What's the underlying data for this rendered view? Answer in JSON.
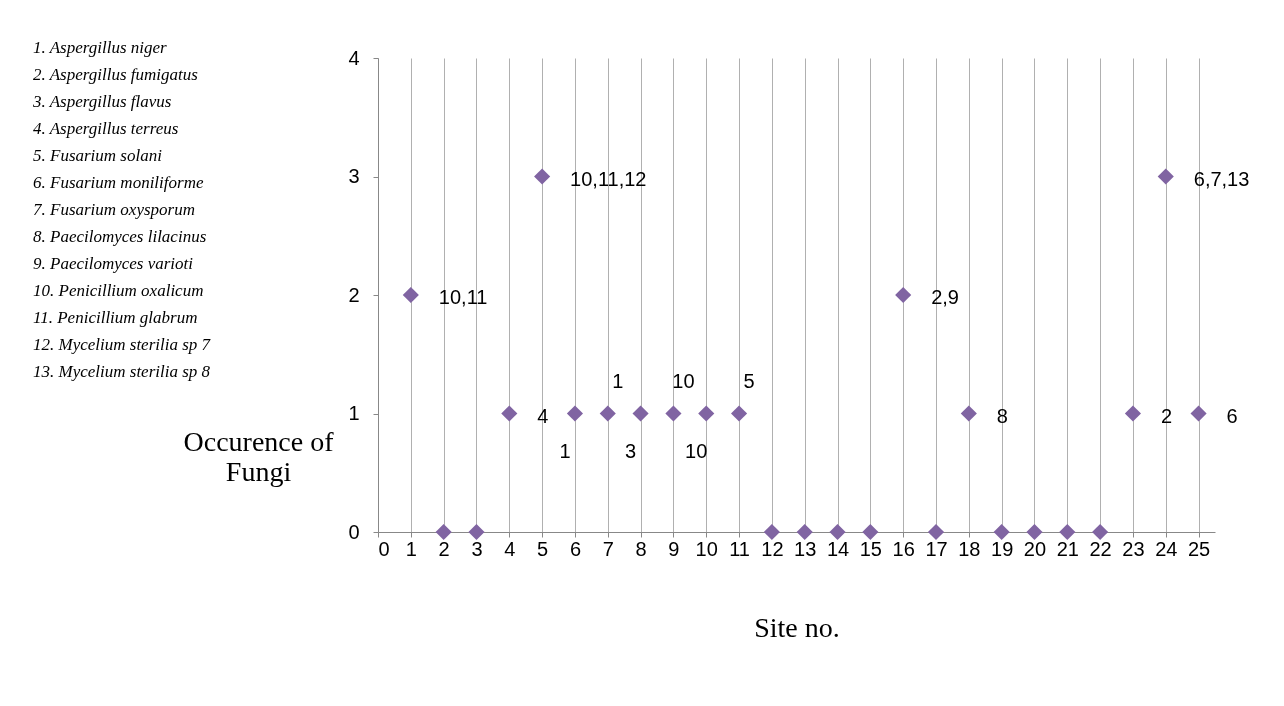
{
  "chart_data": {
    "type": "scatter",
    "xlabel": "Site no.",
    "ylabel": "Occurence of Fungi",
    "x": [
      1,
      2,
      3,
      4,
      5,
      6,
      7,
      8,
      9,
      10,
      11,
      12,
      13,
      14,
      15,
      16,
      17,
      18,
      19,
      20,
      21,
      22,
      23,
      24,
      25
    ],
    "series": [
      {
        "color": "#8064a2",
        "values": [
          2,
          0,
          0,
          1,
          3,
          1,
          1,
          1,
          1,
          1,
          1,
          0,
          0,
          0,
          0,
          2,
          0,
          1,
          0,
          0,
          0,
          0,
          1,
          3,
          1
        ]
      }
    ],
    "xlim": [
      0,
      25.5
    ],
    "xticks": [
      0,
      1,
      2,
      3,
      4,
      5,
      6,
      7,
      8,
      9,
      10,
      11,
      12,
      13,
      14,
      15,
      16,
      17,
      18,
      19,
      20,
      21,
      22,
      23,
      24,
      25
    ],
    "ylim": [
      0,
      4
    ],
    "yticks": [
      0,
      1,
      2,
      3,
      4
    ],
    "grid": "x",
    "marker": "diamond",
    "legend": false,
    "annotations": [
      "1. Aspergillus niger",
      "2. Aspergillus fumigatus",
      "3. Aspergillus flavus",
      "4. Aspergillus terreus",
      "5. Fusarium  solani",
      "6. Fusarium moniliforme",
      "7. Fusarium oxysporum",
      "8. Paecilomyces  lilacinus",
      "9. Paecilomyces varioti",
      "10. Penicillium oxalicum",
      "11. Penicillium glabrum",
      "12. Mycelium sterilia sp 7",
      "13. Mycelium sterilia sp 8",
      {
        "text": "10,11",
        "x": 1,
        "y": 2
      },
      {
        "text": "4",
        "x": 4,
        "y": 1
      },
      {
        "text": "10,11,12",
        "x": 5,
        "y": 3
      },
      {
        "text": "1",
        "x": 6,
        "y": 1
      },
      {
        "text": "1",
        "x": 7,
        "y": 1
      },
      {
        "text": "3",
        "x": 8,
        "y": 1
      },
      {
        "text": "10",
        "x": 9,
        "y": 1
      },
      {
        "text": "10",
        "x": 10,
        "y": 1
      },
      {
        "text": "5",
        "x": 11,
        "y": 1
      },
      {
        "text": "2,9",
        "x": 16,
        "y": 2
      },
      {
        "text": "8",
        "x": 18,
        "y": 1
      },
      {
        "text": "2",
        "x": 23,
        "y": 1
      },
      {
        "text": "6,7,13",
        "x": 24,
        "y": 3
      },
      {
        "text": "6",
        "x": 25,
        "y": 1
      }
    ]
  }
}
